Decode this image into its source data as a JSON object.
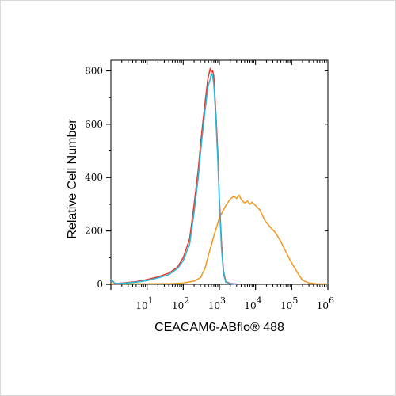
{
  "chart_data": {
    "type": "line",
    "title": "",
    "xlabel": "CEACAM6-ABflo® 488",
    "ylabel": "Relative Cell Number",
    "x_scale": "log",
    "xlim": [
      1,
      1000000
    ],
    "ylim": [
      0,
      840
    ],
    "grid": false,
    "legend": "none",
    "y_ticks": [
      0,
      200,
      400,
      600,
      800
    ],
    "x_ticks": [
      {
        "value": 10,
        "base": "10",
        "exp": "1"
      },
      {
        "value": 100,
        "base": "10",
        "exp": "2"
      },
      {
        "value": 1000,
        "base": "10",
        "exp": "3"
      },
      {
        "value": 10000,
        "base": "10",
        "exp": "4"
      },
      {
        "value": 100000,
        "base": "10",
        "exp": "5"
      },
      {
        "value": 1000000,
        "base": "10",
        "exp": "6"
      }
    ],
    "series": [
      {
        "color": "#e8372b",
        "points": [
          [
            1.0,
            20
          ],
          [
            1.3,
            3
          ],
          [
            2,
            5
          ],
          [
            5,
            10
          ],
          [
            10,
            18
          ],
          [
            20,
            28
          ],
          [
            40,
            42
          ],
          [
            70,
            65
          ],
          [
            100,
            100
          ],
          [
            150,
            170
          ],
          [
            200,
            300
          ],
          [
            260,
            430
          ],
          [
            320,
            560
          ],
          [
            400,
            680
          ],
          [
            480,
            770
          ],
          [
            560,
            810
          ],
          [
            600,
            795
          ],
          [
            650,
            800
          ],
          [
            700,
            780
          ],
          [
            800,
            640
          ],
          [
            900,
            500
          ],
          [
            1000,
            320
          ],
          [
            1150,
            150
          ],
          [
            1300,
            50
          ],
          [
            1500,
            10
          ],
          [
            2000,
            3
          ],
          [
            3000,
            1
          ]
        ]
      },
      {
        "color": "#2ab7d6",
        "points": [
          [
            1.0,
            20
          ],
          [
            1.3,
            3
          ],
          [
            2,
            4
          ],
          [
            5,
            8
          ],
          [
            10,
            14
          ],
          [
            20,
            24
          ],
          [
            40,
            36
          ],
          [
            70,
            60
          ],
          [
            100,
            88
          ],
          [
            150,
            150
          ],
          [
            200,
            270
          ],
          [
            260,
            400
          ],
          [
            320,
            530
          ],
          [
            400,
            650
          ],
          [
            480,
            740
          ],
          [
            560,
            770
          ],
          [
            600,
            790
          ],
          [
            650,
            780
          ],
          [
            700,
            750
          ],
          [
            800,
            620
          ],
          [
            900,
            470
          ],
          [
            1000,
            300
          ],
          [
            1150,
            130
          ],
          [
            1300,
            40
          ],
          [
            1500,
            8
          ],
          [
            2000,
            2
          ],
          [
            3000,
            1
          ]
        ]
      },
      {
        "color": "#f2971b",
        "points": [
          [
            1.0,
            2
          ],
          [
            10,
            2
          ],
          [
            50,
            3
          ],
          [
            100,
            5
          ],
          [
            200,
            12
          ],
          [
            300,
            25
          ],
          [
            400,
            60
          ],
          [
            500,
            110
          ],
          [
            700,
            180
          ],
          [
            1000,
            250
          ],
          [
            1500,
            295
          ],
          [
            2000,
            320
          ],
          [
            2500,
            330
          ],
          [
            3000,
            322
          ],
          [
            3500,
            335
          ],
          [
            4000,
            318
          ],
          [
            5000,
            305
          ],
          [
            6000,
            312
          ],
          [
            7000,
            300
          ],
          [
            8000,
            308
          ],
          [
            10000,
            295
          ],
          [
            13000,
            280
          ],
          [
            18000,
            240
          ],
          [
            25000,
            215
          ],
          [
            35000,
            195
          ],
          [
            50000,
            160
          ],
          [
            70000,
            120
          ],
          [
            100000,
            80
          ],
          [
            150000,
            40
          ],
          [
            200000,
            15
          ],
          [
            300000,
            5
          ],
          [
            500000,
            2
          ],
          [
            1000000,
            1
          ]
        ]
      }
    ]
  }
}
